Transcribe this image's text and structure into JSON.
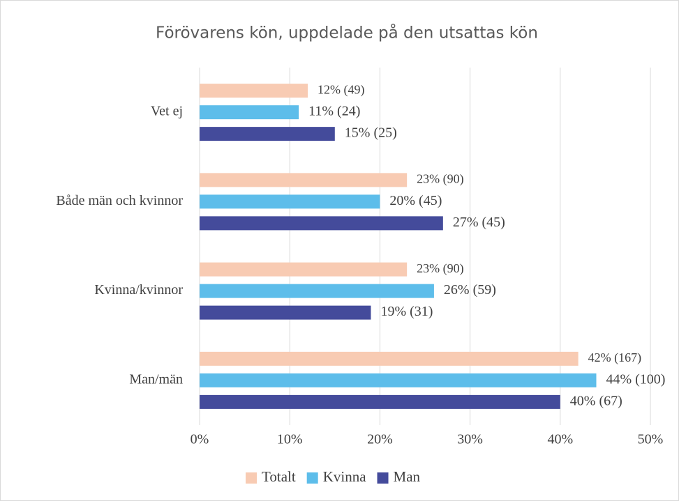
{
  "chart_data": {
    "type": "hbar",
    "title": "Förövarens kön, uppdelade på den utsattas kön",
    "categories": [
      "Vet ej",
      "Både män och kvinnor",
      "Kvinna/kvinnor",
      "Man/män"
    ],
    "series": [
      {
        "name": "Totalt",
        "color": "#f8cbb3",
        "values": [
          12,
          23,
          23,
          42
        ],
        "value_labels": [
          "12% (49)",
          "23% (90)",
          "23% (90)",
          "42% (167)"
        ]
      },
      {
        "name": "Kvinna",
        "color": "#5dbdea",
        "values": [
          11,
          20,
          26,
          44
        ],
        "value_labels": [
          "11% (24)",
          "20% (45)",
          "26% (59)",
          "44% (100)"
        ]
      },
      {
        "name": "Man",
        "color": "#444b9b",
        "values": [
          15,
          27,
          19,
          40
        ],
        "value_labels": [
          "15% (25)",
          "27% (45)",
          "19% (31)",
          "40% (67)"
        ]
      }
    ],
    "xlim": [
      0,
      50
    ],
    "xticks": [
      {
        "value": 0,
        "label": "0%"
      },
      {
        "value": 10,
        "label": "10%"
      },
      {
        "value": 20,
        "label": "20%"
      },
      {
        "value": 30,
        "label": "30%"
      },
      {
        "value": 40,
        "label": "40%"
      },
      {
        "value": 50,
        "label": "50%"
      }
    ],
    "grid": true,
    "legend": "bottom"
  }
}
